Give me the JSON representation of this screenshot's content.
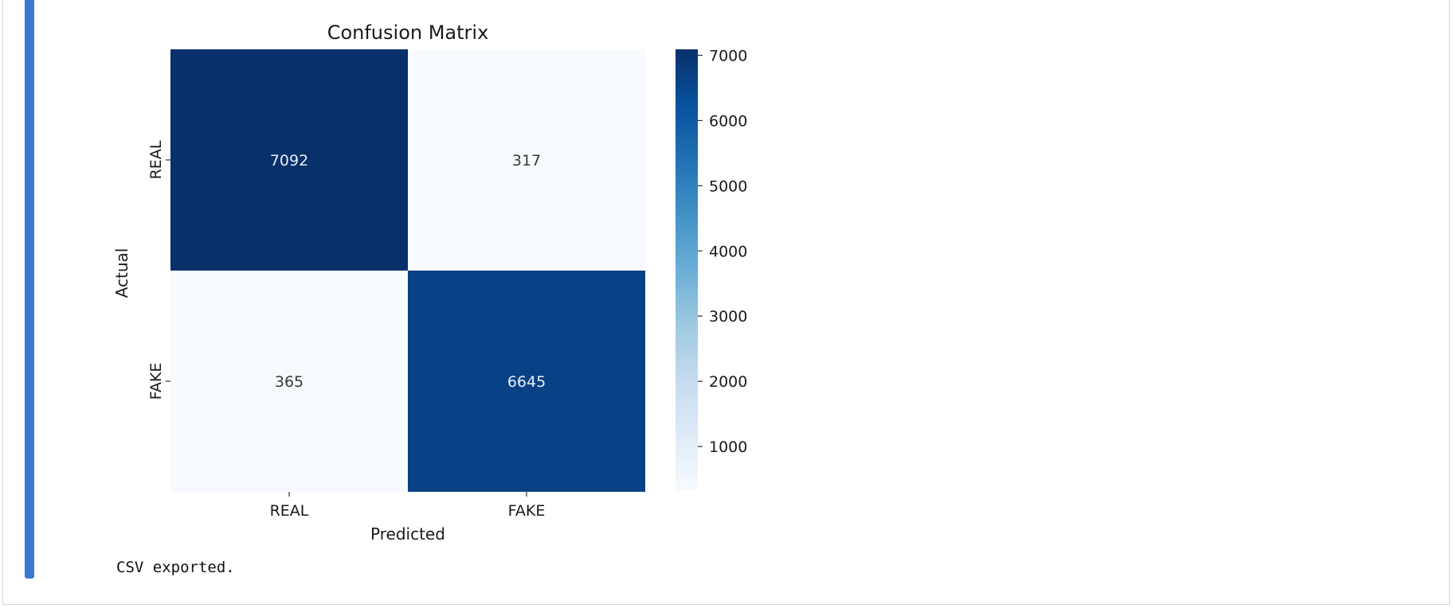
{
  "notebook": {
    "stream_output": "CSV exported."
  },
  "chart_data": {
    "type": "heatmap",
    "title": "Confusion Matrix",
    "xlabel": "Predicted",
    "ylabel": "Actual",
    "x_categories": [
      "REAL",
      "FAKE"
    ],
    "y_categories": [
      "REAL",
      "FAKE"
    ],
    "values": [
      [
        7092,
        317
      ],
      [
        365,
        6645
      ]
    ],
    "colormap": "Blues",
    "color_range": [
      317,
      7092
    ],
    "colorbar_ticks": [
      1000,
      2000,
      3000,
      4000,
      5000,
      6000,
      7000
    ],
    "annotation_colors": {
      "dark_cell": "#e8eef6",
      "light_cell": "#3a3a3a"
    },
    "grid": false,
    "colorbar_placement": "right"
  }
}
